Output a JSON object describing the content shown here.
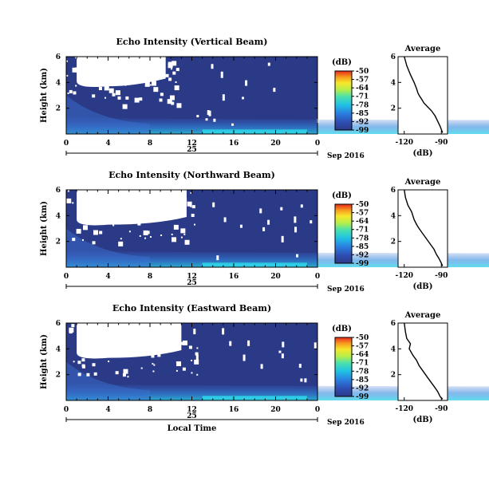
{
  "chart_data": [
    {
      "type": "heatmap",
      "title": "Echo Intensity (Vertical Beam)",
      "ylabel": "Height (km)",
      "xlabel": "",
      "x_ticks": [
        "0",
        "4",
        "8",
        "12",
        "16",
        "20",
        "0"
      ],
      "y_ticks": [
        "2",
        "4",
        "6"
      ],
      "x_range_hours": [
        0,
        24
      ],
      "y_range_km": [
        0,
        6
      ],
      "date_day": "25",
      "date_label": "Sep 2016",
      "colorbar": {
        "unit": "(dB)",
        "ticks": [
          "-50",
          "-57",
          "-64",
          "-71",
          "-78",
          "-85",
          "-92",
          "-99"
        ],
        "range": [
          -99,
          -50
        ]
      },
      "average_profile": {
        "title": "Average",
        "xlabel": "(dB)",
        "x_ticks": [
          "-120",
          "-90"
        ],
        "y_ticks": [
          "2",
          "4",
          "6"
        ],
        "x": [
          -120,
          -118,
          -115,
          -112,
          -110,
          -109,
          -108,
          -106,
          -104,
          -101,
          -98,
          -95,
          -93,
          -91,
          -89
        ],
        "y": [
          6.0,
          5.3,
          4.6,
          4.0,
          3.5,
          3.2,
          3.0,
          2.7,
          2.4,
          2.1,
          1.8,
          1.4,
          1.0,
          0.6,
          0.1
        ]
      },
      "grid": false
    },
    {
      "type": "heatmap",
      "title": "Echo Intensity (Northward Beam)",
      "ylabel": "Height (km)",
      "xlabel": "",
      "x_ticks": [
        "0",
        "4",
        "8",
        "12",
        "16",
        "20",
        "0"
      ],
      "y_ticks": [
        "2",
        "4",
        "6"
      ],
      "x_range_hours": [
        0,
        24
      ],
      "y_range_km": [
        0,
        6
      ],
      "date_day": "25",
      "date_label": "Sep 2016",
      "colorbar": {
        "unit": "(dB)",
        "ticks": [
          "-50",
          "-57",
          "-64",
          "-71",
          "-78",
          "-85",
          "-92",
          "-99"
        ],
        "range": [
          -99,
          -50
        ]
      },
      "average_profile": {
        "title": "Average",
        "xlabel": "(dB)",
        "x_ticks": [
          "-120",
          "-90"
        ],
        "y_ticks": [
          "2",
          "4",
          "6"
        ],
        "x": [
          -120,
          -119,
          -117,
          -114,
          -112,
          -110,
          -108,
          -105,
          -102,
          -99,
          -96,
          -94,
          -92,
          -90,
          -89
        ],
        "y": [
          6.0,
          5.4,
          4.8,
          4.3,
          3.7,
          3.3,
          3.0,
          2.6,
          2.2,
          1.8,
          1.4,
          1.0,
          0.7,
          0.3,
          0.1
        ]
      },
      "grid": false
    },
    {
      "type": "heatmap",
      "title": "Echo Intensity (Eastward Beam)",
      "ylabel": "Height (km)",
      "xlabel": "Local Time",
      "x_ticks": [
        "0",
        "4",
        "8",
        "12",
        "16",
        "20",
        "0"
      ],
      "y_ticks": [
        "2",
        "4",
        "6"
      ],
      "x_range_hours": [
        0,
        24
      ],
      "y_range_km": [
        0,
        6
      ],
      "date_day": "25",
      "date_label": "Sep 2016",
      "colorbar": {
        "unit": "(dB)",
        "ticks": [
          "-50",
          "-57",
          "-64",
          "-71",
          "-78",
          "-85",
          "-92",
          "-99"
        ],
        "range": [
          -99,
          -50
        ]
      },
      "average_profile": {
        "title": "Average",
        "xlabel": "(dB)",
        "x_ticks": [
          "-120",
          "-90"
        ],
        "y_ticks": [
          "2",
          "4",
          "6"
        ],
        "x": [
          -120,
          -119,
          -118,
          -115,
          -116,
          -113,
          -110,
          -108,
          -105,
          -102,
          -99,
          -96,
          -93,
          -91,
          -89
        ],
        "y": [
          6.0,
          5.3,
          4.8,
          4.4,
          4.0,
          3.5,
          3.1,
          2.7,
          2.3,
          1.9,
          1.5,
          1.1,
          0.7,
          0.3,
          0.1
        ]
      },
      "grid": false
    }
  ]
}
